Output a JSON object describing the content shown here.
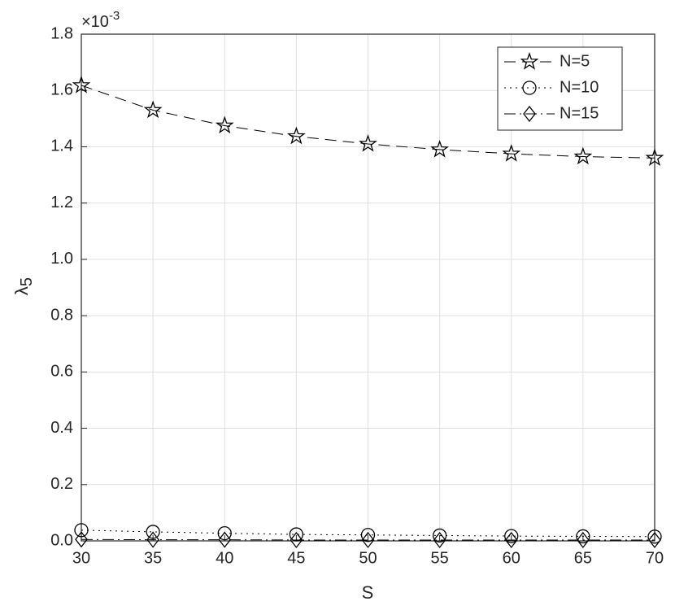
{
  "chart_data": {
    "type": "line",
    "x_label": "S",
    "y_label": {
      "symbol": "λ",
      "subscript": "5"
    },
    "y_exponent": {
      "base": "×10",
      "power": "-3"
    },
    "x": [
      30,
      35,
      40,
      45,
      50,
      55,
      60,
      65,
      70
    ],
    "series": [
      {
        "name": "N=5",
        "color": "#000000",
        "line_style": "dashed",
        "marker": "star",
        "values": [
          1.618,
          1.53,
          1.475,
          1.437,
          1.41,
          1.39,
          1.375,
          1.365,
          1.36
        ]
      },
      {
        "name": "N=10",
        "color": "#000000",
        "line_style": "dotted",
        "marker": "circle",
        "values": [
          0.038,
          0.032,
          0.027,
          0.023,
          0.021,
          0.019,
          0.017,
          0.016,
          0.015
        ]
      },
      {
        "name": "N=15",
        "color": "#000000",
        "line_style": "dashdot",
        "marker": "diamond",
        "values": [
          0.005,
          0.004,
          0.004,
          0.003,
          0.003,
          0.003,
          0.003,
          0.003,
          0.003
        ]
      }
    ],
    "xlim": [
      30,
      70
    ],
    "xticks": [
      30,
      35,
      40,
      45,
      50,
      55,
      60,
      65,
      70
    ],
    "ylim": [
      0,
      1.8
    ],
    "yticks": [
      {
        "value": 0,
        "label": "0.0"
      },
      0.2,
      0.4,
      0.6,
      0.8,
      {
        "value": 1,
        "label": "1.0"
      },
      1.2,
      1.4,
      1.6,
      1.8
    ],
    "grid": true,
    "legend_position": "northeast"
  }
}
